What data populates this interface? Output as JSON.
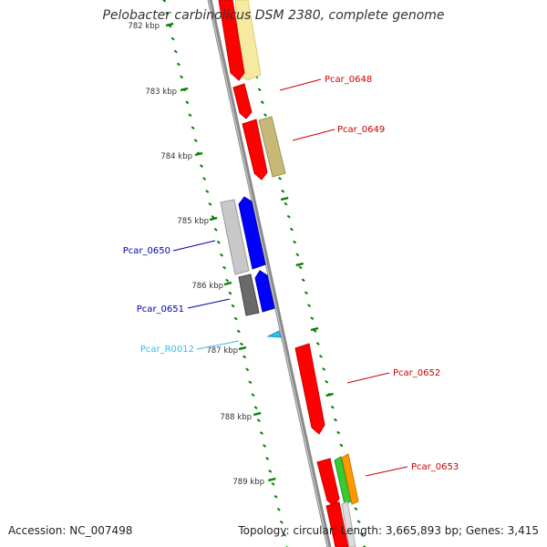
{
  "title": "Pelobacter carbinolicus DSM 2380, complete genome",
  "footer": {
    "accession": "Accession: NC_007498",
    "summary": "Topology: circular; Length: 3,665,893 bp; Genes: 3,415"
  },
  "colors": {
    "red_gene": "#ff0000",
    "blue_gene": "#0000ff",
    "tick_green": "#008000",
    "backbone": "#888888",
    "red_label": "#cc0000",
    "blue_label": "#0000aa",
    "cyan_label": "#33bbee"
  },
  "scale_labels": [
    "782 kbp",
    "783 kbp",
    "784 kbp",
    "785 kbp",
    "786 kbp",
    "787 kbp",
    "788 kbp",
    "789 kbp"
  ],
  "gene_labels": [
    {
      "text": "Pcar_0648",
      "color": "#cc0000"
    },
    {
      "text": "Pcar_0649",
      "color": "#cc0000"
    },
    {
      "text": "Pcar_0650",
      "color": "#0000aa"
    },
    {
      "text": "Pcar_0651",
      "color": "#0000aa"
    },
    {
      "text": "Pcar_R0012",
      "color": "#33bbee"
    },
    {
      "text": "Pcar_0652",
      "color": "#cc0000"
    },
    {
      "text": "Pcar_0653",
      "color": "#cc0000"
    }
  ]
}
